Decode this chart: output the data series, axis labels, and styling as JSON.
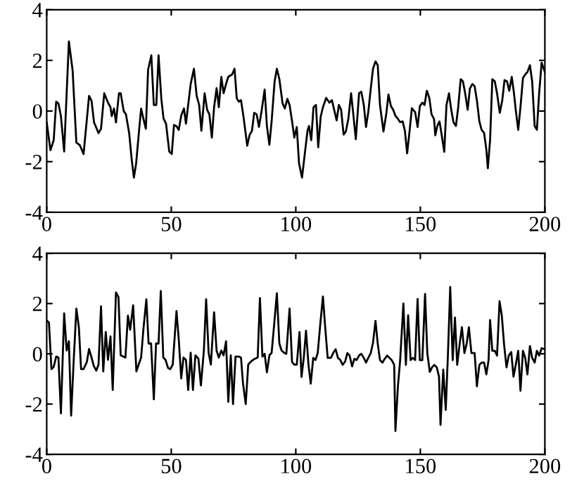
{
  "chart_data": [
    {
      "type": "line",
      "xlim": [
        0,
        200
      ],
      "ylim": [
        -4,
        4
      ],
      "xticks": [
        0,
        50,
        100,
        150,
        200
      ],
      "yticks": [
        -4,
        -2,
        0,
        2,
        4
      ],
      "grid": false,
      "marker": "none",
      "line_style": "solid",
      "series": [
        {
          "color": "#000000",
          "x": [
            0,
            1.5,
            2.8,
            3.8,
            4.7,
            5.7,
            7,
            8.9,
            10.4,
            11.9,
            13.3,
            14.8,
            17,
            18,
            19,
            20.8,
            21.8,
            23.1,
            24.6,
            25.6,
            26.1,
            27,
            27.8,
            29,
            29.7,
            30.9,
            31.8,
            33.1,
            34.1,
            35,
            35.9,
            36.9,
            37.9,
            38.8,
            39.8,
            40.7,
            42,
            43,
            44,
            44.9,
            46,
            46.9,
            47.9,
            49.2,
            50.2,
            51.1,
            52.1,
            53,
            54,
            55.1,
            55.9,
            57.8,
            59.1,
            60.2,
            61.2,
            62.1,
            63.4,
            64.4,
            65.3,
            66.3,
            67.2,
            68.2,
            69.1,
            70.1,
            71,
            72,
            72.9,
            74.4,
            75.4,
            76.3,
            77.1,
            78,
            79,
            80.5,
            81.4,
            82.4,
            83.3,
            84.3,
            85.2,
            86.2,
            87.5,
            88.4,
            89.4,
            90.3,
            91.5,
            92.4,
            93.4,
            94.7,
            95.6,
            96.6,
            97.5,
            98.5,
            99.4,
            100.4,
            101.3,
            102.5,
            103.6,
            104.7,
            105.3,
            106.2,
            107.1,
            108.1,
            109,
            110,
            110.9,
            112.2,
            113.5,
            114.5,
            115.4,
            116.4,
            117.3,
            118.2,
            119.2,
            120.1,
            121.1,
            122.2,
            122.9,
            124.1,
            125.4,
            126.3,
            127.3,
            128.2,
            129.1,
            130.1,
            131,
            132,
            132.9,
            133.8,
            135.2,
            136.3,
            137.2,
            138.2,
            139.1,
            140,
            141,
            141.9,
            142.9,
            143.8,
            144.7,
            145.7,
            146.6,
            147.9,
            148.9,
            149.8,
            150.8,
            151.7,
            152.6,
            153.6,
            154.5,
            155.5,
            156,
            156.8,
            157.7,
            158.6,
            159.6,
            160.5,
            161.5,
            162.4,
            163.3,
            164.3,
            165.2,
            166.2,
            167.1,
            168,
            169,
            169.9,
            170.9,
            171.8,
            172.7,
            173.7,
            174.6,
            175.6,
            176.5,
            177.1,
            178,
            178.9,
            179.9,
            180.8,
            181.9,
            182.9,
            183.8,
            184.8,
            185.7,
            186.7,
            187.6,
            188.3,
            189.3,
            190.2,
            191.2,
            192.1,
            193,
            194,
            194.9,
            195.9,
            196.8,
            197.7,
            198.7,
            200
          ],
          "values": [
            -0.45,
            -1.55,
            -1.15,
            0.37,
            0.3,
            -0.2,
            -1.6,
            2.75,
            1.6,
            -1.25,
            -1.35,
            -1.7,
            0.6,
            0.4,
            -0.45,
            -0.87,
            -0.7,
            0.7,
            0.33,
            0.15,
            -0.2,
            0.1,
            -0.45,
            0.7,
            0.7,
            0,
            -0.13,
            -0.87,
            -1.9,
            -2.63,
            -2.07,
            -0.96,
            0.1,
            -0.3,
            -0.7,
            1.63,
            2.2,
            0.24,
            0.24,
            2.2,
            0.5,
            -0.3,
            -0.5,
            -1.6,
            -1.7,
            -0.55,
            -0.6,
            -0.75,
            -0.18,
            0.1,
            -0.5,
            1.07,
            1.67,
            0.6,
            0.24,
            -0.78,
            0.7,
            0.05,
            -0.13,
            -1.05,
            0.15,
            0.9,
            0.15,
            1.35,
            0.7,
            1.07,
            1.35,
            1.44,
            1.67,
            0.5,
            0.37,
            0.43,
            -0.22,
            -1.37,
            -0.96,
            -0.78,
            -0.07,
            -0.13,
            -0.63,
            -0.04,
            0.85,
            -0.59,
            -1.33,
            -0.4,
            1.17,
            1.67,
            1.26,
            0.3,
            0.1,
            0.48,
            0.24,
            -0.4,
            -1.05,
            -0.63,
            -2.07,
            -2.63,
            -1.7,
            -0.78,
            -0.59,
            -1.15,
            0.15,
            0.24,
            -1.43,
            -0.22,
            0.15,
            0.52,
            0.33,
            0.43,
            0.05,
            -0.37,
            0.24,
            0.05,
            -0.93,
            -0.81,
            -0.31,
            0.7,
            0.05,
            -1.11,
            0.7,
            0.76,
            0.24,
            -0.63,
            -0.04,
            0.89,
            1.67,
            1.96,
            1.81,
            0.24,
            -0.81,
            -0.13,
            0.65,
            0.19,
            0.05,
            -0.19,
            -0.31,
            -0.44,
            -0.41,
            -0.78,
            -1.67,
            -0.78,
            0.11,
            -0.04,
            -0.63,
            0.19,
            0.33,
            0.24,
            0.8,
            0.52,
            -0.13,
            -0.31,
            -0.96,
            -0.59,
            -0.41,
            -0.96,
            -1.61,
            0.24,
            0.7,
            0.05,
            -0.44,
            -0.59,
            0.15,
            1.26,
            1.17,
            0.7,
            0.05,
            0.89,
            1.07,
            0.98,
            0.43,
            -0.41,
            -0.74,
            -0.87,
            -1.52,
            -2.26,
            -1.15,
            1.26,
            1.17,
            0.7,
            -0.07,
            0.43,
            1.22,
            1.17,
            0.8,
            1.35,
            0.7,
            0.05,
            -0.74,
            0.15,
            1.3,
            1.44,
            1.54,
            1.81,
            1.17,
            -0.59,
            -0.74,
            0.7,
            1.91,
            1.54
          ]
        }
      ]
    },
    {
      "type": "line",
      "xlim": [
        0,
        200
      ],
      "ylim": [
        -4,
        4
      ],
      "xticks": [
        0,
        50,
        100,
        150,
        200
      ],
      "yticks": [
        -4,
        -2,
        0,
        2,
        4
      ],
      "grid": false,
      "marker": "none",
      "line_style": "solid",
      "series": [
        {
          "color": "#000000",
          "x": [
            0,
            0.9,
            1.9,
            2.8,
            3.8,
            4.7,
            5.7,
            7,
            8,
            8.9,
            9.8,
            10.8,
            11.9,
            12.9,
            13.8,
            14.8,
            16.1,
            17,
            18,
            18.9,
            19.9,
            20.8,
            21.8,
            22.7,
            23.7,
            24.6,
            25.6,
            26.5,
            27.8,
            28.8,
            29.7,
            31.6,
            32.6,
            33.5,
            34.7,
            36,
            36.9,
            37.9,
            38.8,
            40,
            40.9,
            41.9,
            43,
            43.9,
            44.9,
            45.8,
            46.8,
            47.7,
            48.7,
            49.6,
            50.6,
            52.1,
            53,
            54,
            54.9,
            55.9,
            56.8,
            57.8,
            58.7,
            59.7,
            60.9,
            61.9,
            63.1,
            64,
            65,
            65.9,
            67.2,
            68.2,
            69.1,
            70.1,
            71,
            72,
            72.9,
            73.9,
            74.8,
            75.8,
            77.1,
            78,
            78.8,
            79.9,
            80.9,
            81.8,
            82.8,
            83.7,
            84.7,
            85.6,
            86.6,
            87.5,
            88.4,
            89.4,
            90.3,
            91.3,
            92.4,
            93.4,
            94.3,
            95.3,
            96.2,
            97.5,
            98.5,
            99.4,
            100.4,
            101.5,
            102.3,
            103.2,
            104.1,
            105.1,
            106,
            107,
            107.9,
            108.8,
            109.8,
            110.9,
            111.8,
            112.8,
            114.1,
            115,
            116,
            116.9,
            117.9,
            118.8,
            119.8,
            120.7,
            121.6,
            122.6,
            123.5,
            124.4,
            125.4,
            126.3,
            127.3,
            128.2,
            129.1,
            130.1,
            131,
            132,
            132.9,
            133.8,
            134.8,
            135.7,
            136.7,
            137.6,
            138.5,
            139.5,
            140,
            141,
            141.9,
            143.2,
            144.2,
            145.1,
            146.1,
            147,
            147.9,
            148.9,
            149.8,
            150.8,
            151.9,
            152.8,
            153.8,
            154.7,
            155.6,
            156.6,
            157.5,
            158.1,
            159.2,
            160.2,
            161.1,
            162,
            163,
            163.9,
            164.8,
            165.8,
            166.7,
            167.7,
            168.6,
            169.5,
            170.5,
            171.8,
            172.7,
            173.7,
            174.6,
            175.6,
            176.5,
            177.4,
            178,
            178.9,
            179.9,
            180.8,
            181.8,
            182.7,
            183.6,
            184.6,
            185.5,
            186.5,
            187.4,
            188.3,
            189.3,
            190.2,
            191.2,
            192.1,
            193,
            194,
            194.9,
            195.9,
            196.8,
            197.7,
            198.7,
            200
          ],
          "values": [
            1.33,
            1.24,
            -0.61,
            -0.52,
            -0.11,
            -0.15,
            -2.37,
            1.61,
            0.13,
            0.5,
            -2.46,
            -0.33,
            1.8,
            1.06,
            -0.61,
            -0.61,
            -0.33,
            0.19,
            -0.15,
            -0.48,
            -0.67,
            -0.43,
            1.89,
            -0.7,
            0.87,
            -0.24,
            0.69,
            -1.44,
            2.44,
            2.26,
            -0.06,
            -0.15,
            1.52,
            0.96,
            1.93,
            -0.7,
            -0.43,
            -0.15,
            0.96,
            2.17,
            0.41,
            0.41,
            -1.81,
            0.41,
            0.41,
            2.5,
            -0.15,
            -0.24,
            -0.56,
            -0.61,
            -0.43,
            1.7,
            0.59,
            -0.98,
            -0.15,
            -0.24,
            -1.44,
            0.04,
            -1.44,
            -0.06,
            -0.19,
            -1.26,
            0.13,
            2.17,
            0.04,
            -0.43,
            1.65,
            0.13,
            -0.15,
            0.13,
            -0.06,
            0.5,
            -1.91,
            -0.06,
            -2,
            -0.11,
            -0.11,
            -0.15,
            -1.17,
            -2,
            -0.43,
            -0.33,
            -0.24,
            -0.19,
            -0.15,
            2.22,
            -0.11,
            0,
            -0.74,
            -0.06,
            0.04,
            1.15,
            2.41,
            0.41,
            0.13,
            0.04,
            0,
            1.8,
            -0.33,
            -0.43,
            -0.43,
            0.87,
            -0.92,
            -0.16,
            0.92,
            -0.44,
            -1.19,
            -0.16,
            -0.25,
            0.03,
            1.15,
            2.28,
            1.06,
            -0.16,
            -0.16,
            0.03,
            0.18,
            -0.16,
            -0.25,
            -0.44,
            -0.31,
            0.03,
            -0.07,
            -0.5,
            -0.2,
            -0.25,
            -0.07,
            0,
            -0.16,
            -0.35,
            -0.16,
            0.03,
            0.44,
            1.31,
            0.4,
            -0.25,
            -0.35,
            -0.2,
            -0.07,
            -0.16,
            -0.25,
            -0.44,
            -3.07,
            -1.29,
            -0.25,
            2,
            -0.44,
            1.53,
            -0.25,
            -0.16,
            -0.25,
            2.18,
            -0.25,
            -0.25,
            2.38,
            0.03,
            -0.72,
            -0.54,
            -0.44,
            -0.54,
            -0.91,
            -2.83,
            -0.63,
            -2.23,
            0.03,
            2.66,
            -0.25,
            1.44,
            -0.44,
            0.4,
            1.06,
            0.03,
            0.4,
            1.06,
            0.03,
            0.03,
            -1.29,
            -0.44,
            -0.35,
            -0.35,
            -0.82,
            -0.25,
            1.34,
            0.12,
            0.12,
            -0.07,
            2.09,
            1.53,
            0.4,
            -0.54,
            -0.07,
            0.07,
            -0.91,
            -0.44,
            0.12,
            -1.47,
            0.12,
            -0.16,
            -0.82,
            0.31,
            -0.16,
            -0.35,
            0.12,
            -0.07,
            0.22,
            0.18
          ]
        }
      ]
    }
  ]
}
